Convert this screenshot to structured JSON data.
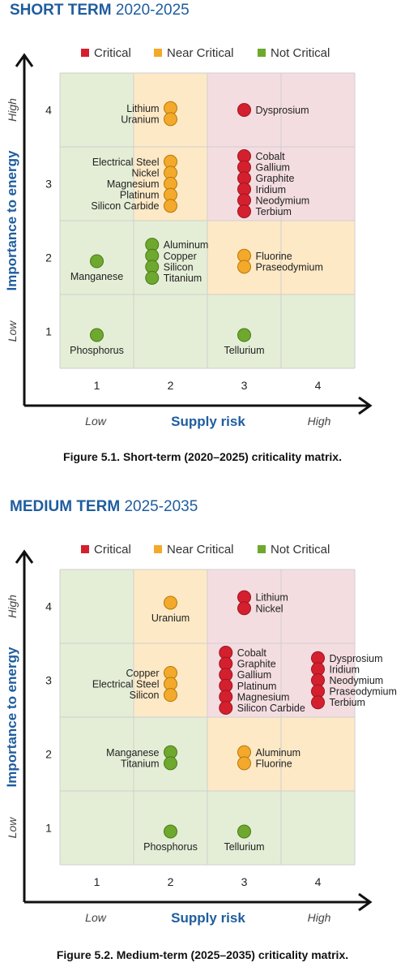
{
  "chart_data": [
    {
      "type": "scatter",
      "section_strong": "SHORT TERM",
      "section_light": "2020-2025",
      "caption": "Figure 5.1. Short-term (2020–2025) criticality matrix.",
      "xlabel": "Supply risk",
      "ylabel": "Importance to energy",
      "x_low": "Low",
      "x_high": "High",
      "y_low": "Low",
      "y_high": "High",
      "x_ticks": [
        "1",
        "2",
        "3",
        "4"
      ],
      "y_ticks": [
        "1",
        "2",
        "3",
        "4"
      ],
      "xlim": [
        0.5,
        4.5
      ],
      "ylim": [
        0.5,
        4.5
      ],
      "grid": true,
      "legend": [
        {
          "name": "Critical",
          "color": "#d4202e"
        },
        {
          "name": "Near Critical",
          "color": "#f3a92b"
        },
        {
          "name": "Not Critical",
          "color": "#6ea82e"
        }
      ],
      "cell_colors": {
        "critical": "#f4dde1",
        "near": "#fde9c6",
        "not": "#e4eed6"
      },
      "cells": [
        [
          "not",
          "not",
          "not",
          "not"
        ],
        [
          "not",
          "not",
          "near",
          "near"
        ],
        [
          "not",
          "near",
          "critical",
          "critical"
        ],
        [
          "not",
          "near",
          "critical",
          "critical"
        ]
      ],
      "groups": [
        {
          "status": "near",
          "x": 2.0,
          "y": 3.95,
          "labels": [
            "Lithium",
            "Uranium"
          ],
          "label_side": "left"
        },
        {
          "status": "critical",
          "x": 3.0,
          "y": 4.0,
          "labels": [
            "Dysprosium"
          ],
          "label_side": "right"
        },
        {
          "status": "near",
          "x": 2.0,
          "y": 3.0,
          "labels": [
            "Electrical Steel",
            "Nickel",
            "Magnesium",
            "Platinum",
            "Silicon Carbide"
          ],
          "label_side": "left"
        },
        {
          "status": "critical",
          "x": 3.0,
          "y": 3.0,
          "labels": [
            "Cobalt",
            "Gallium",
            "Graphite",
            "Iridium",
            "Neodymium",
            "Terbium"
          ],
          "label_side": "right"
        },
        {
          "status": "not",
          "x": 1.0,
          "y": 1.95,
          "labels": [
            "Manganese"
          ],
          "label_side": "below"
        },
        {
          "status": "not",
          "x": 1.75,
          "y": 1.95,
          "labels": [
            "Aluminum",
            "Copper",
            "Silicon",
            "Titanium"
          ],
          "label_side": "right"
        },
        {
          "status": "near",
          "x": 3.0,
          "y": 1.95,
          "labels": [
            "Fluorine",
            "Praseodymium"
          ],
          "label_side": "right"
        },
        {
          "status": "not",
          "x": 1.0,
          "y": 0.95,
          "labels": [
            "Phosphorus"
          ],
          "label_side": "below"
        },
        {
          "status": "not",
          "x": 3.0,
          "y": 0.95,
          "labels": [
            "Tellurium"
          ],
          "label_side": "below"
        }
      ]
    },
    {
      "type": "scatter",
      "section_strong": "MEDIUM TERM",
      "section_light": "2025-2035",
      "caption": "Figure 5.2. Medium-term (2025–2035) criticality matrix.",
      "xlabel": "Supply risk",
      "ylabel": "Importance to energy",
      "x_low": "Low",
      "x_high": "High",
      "y_low": "Low",
      "y_high": "High",
      "x_ticks": [
        "1",
        "2",
        "3",
        "4"
      ],
      "y_ticks": [
        "1",
        "2",
        "3",
        "4"
      ],
      "xlim": [
        0.5,
        4.5
      ],
      "ylim": [
        0.5,
        4.5
      ],
      "grid": true,
      "legend": [
        {
          "name": "Critical",
          "color": "#d4202e"
        },
        {
          "name": "Near Critical",
          "color": "#f3a92b"
        },
        {
          "name": "Not Critical",
          "color": "#6ea82e"
        }
      ],
      "cell_colors": {
        "critical": "#f4dde1",
        "near": "#fde9c6",
        "not": "#e4eed6"
      },
      "cells": [
        [
          "not",
          "not",
          "not",
          "not"
        ],
        [
          "not",
          "not",
          "near",
          "near"
        ],
        [
          "not",
          "near",
          "critical",
          "critical"
        ],
        [
          "not",
          "near",
          "critical",
          "critical"
        ]
      ],
      "groups": [
        {
          "status": "critical",
          "x": 3.0,
          "y": 4.05,
          "labels": [
            "Lithium",
            "Nickel"
          ],
          "label_side": "right"
        },
        {
          "status": "near",
          "x": 2.0,
          "y": 4.05,
          "labels": [
            "Uranium"
          ],
          "label_side": "below"
        },
        {
          "status": "near",
          "x": 2.0,
          "y": 2.95,
          "labels": [
            "Copper",
            "Electrical Steel",
            "Silicon"
          ],
          "label_side": "left"
        },
        {
          "status": "critical",
          "x": 2.75,
          "y": 3.0,
          "labels": [
            "Cobalt",
            "Graphite",
            "Gallium",
            "Platinum",
            "Magnesium",
            "Silicon Carbide"
          ],
          "label_side": "right"
        },
        {
          "status": "critical",
          "x": 4.0,
          "y": 3.0,
          "labels": [
            "Dysprosium",
            "Iridium",
            "Neodymium",
            "Praseodymium",
            "Terbium"
          ],
          "label_side": "right"
        },
        {
          "status": "not",
          "x": 2.0,
          "y": 1.95,
          "labels": [
            "Manganese",
            "Titanium"
          ],
          "label_side": "left"
        },
        {
          "status": "near",
          "x": 3.0,
          "y": 1.95,
          "labels": [
            "Aluminum",
            "Fluorine"
          ],
          "label_side": "right"
        },
        {
          "status": "not",
          "x": 2.0,
          "y": 0.95,
          "labels": [
            "Phosphorus"
          ],
          "label_side": "below"
        },
        {
          "status": "not",
          "x": 3.0,
          "y": 0.95,
          "labels": [
            "Tellurium"
          ],
          "label_side": "below"
        }
      ]
    }
  ]
}
